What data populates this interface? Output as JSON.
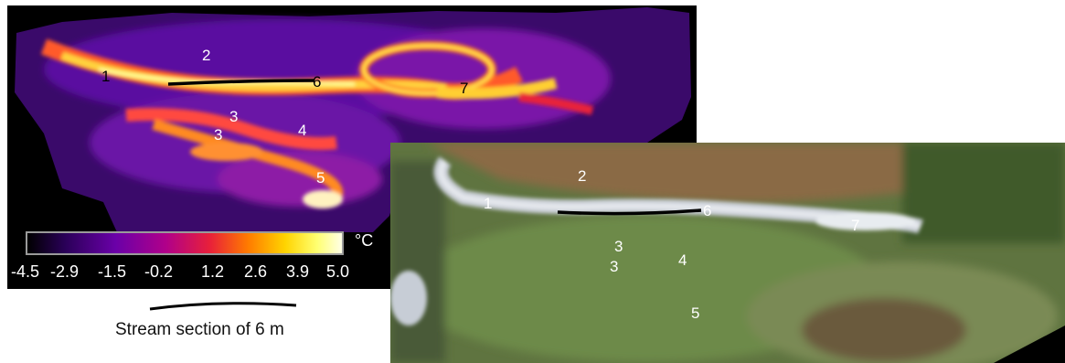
{
  "thermal_image": {
    "point_labels": [
      "1",
      "2",
      "3",
      "3",
      "4",
      "5",
      "6",
      "7"
    ],
    "colorbar": {
      "unit": "°C",
      "ticks": [
        "-4.5",
        "-2.9",
        "-1.5",
        "-0.2",
        "1.2",
        "2.6",
        "3.9",
        "5.0"
      ]
    }
  },
  "photo_image": {
    "point_labels": [
      "1",
      "2",
      "3",
      "3",
      "4",
      "5",
      "6",
      "7"
    ]
  },
  "scale_bar": {
    "caption": "Stream section of 6 m"
  }
}
